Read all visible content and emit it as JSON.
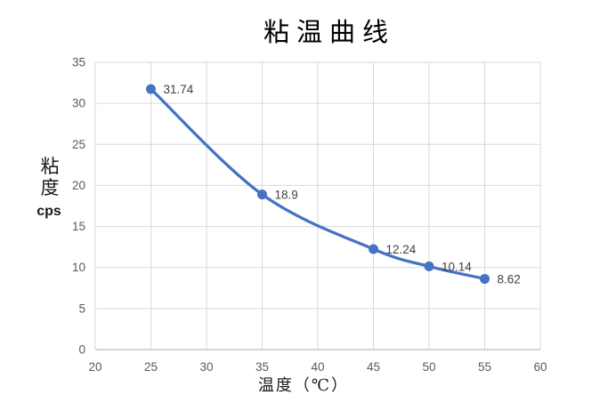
{
  "chart": {
    "title": "粘温曲线",
    "y_axis_title": {
      "line1": "粘",
      "line2": "度",
      "line3": "cps"
    },
    "x_axis_title": "温度（℃）",
    "colors": {
      "series_line": "#4472C4",
      "marker_fill": "#4472C4",
      "gridline": "#D9D9D9",
      "axis_line": "#BFBFBF",
      "tick_label": "#595959",
      "data_label": "#404040",
      "title_text": "#000000",
      "background": "#FFFFFF"
    }
  },
  "chart_data": {
    "type": "line",
    "title": "粘温曲线",
    "xlabel": "温度（℃）",
    "ylabel": "粘度 cps",
    "x": [
      25,
      35,
      45,
      50,
      55
    ],
    "y": [
      31.74,
      18.9,
      12.24,
      10.14,
      8.62
    ],
    "point_labels": [
      "31.74",
      "18.9",
      "12.24",
      "10.14",
      "8.62"
    ],
    "xlim": [
      20,
      60
    ],
    "ylim": [
      0,
      35
    ],
    "x_ticks": [
      20,
      25,
      30,
      35,
      40,
      45,
      50,
      55,
      60
    ],
    "y_ticks": [
      0,
      5,
      10,
      15,
      20,
      25,
      30,
      35
    ],
    "grid": true,
    "smooth_line": true,
    "markers": true,
    "data_labels_position": "right",
    "legend_position": "none"
  }
}
